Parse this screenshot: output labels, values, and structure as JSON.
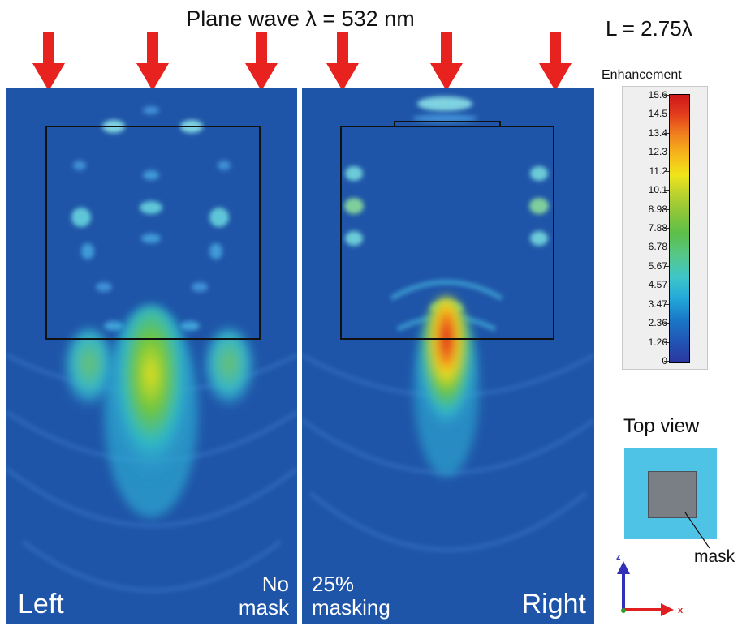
{
  "header": {
    "title": "Plane wave λ  = 532 nm",
    "length_label": "L = 2.75λ"
  },
  "panels": {
    "left": {
      "corner_label": "Left",
      "mask_line1": "No",
      "mask_line2": "mask"
    },
    "right": {
      "corner_label": "Right",
      "mask_line1": "25%",
      "mask_line2": "masking"
    }
  },
  "colorbar": {
    "title": "Enhancement",
    "ticks": [
      "15.6",
      "14.5",
      "13.4",
      "12.3",
      "11.2",
      "10.1",
      "8.98",
      "7.88",
      "6.78",
      "5.67",
      "4.57",
      "3.47",
      "2.36",
      "1.26",
      "0"
    ],
    "min": 0,
    "max": 15.6
  },
  "top_view": {
    "title": "Top view",
    "mask_label": "mask"
  },
  "axes": {
    "z_label": "z",
    "x_label": "x"
  },
  "colors": {
    "arrow": "#e8221f",
    "field_background": "#1f55a8",
    "outline": "#111111",
    "substrate": "#4fc3e6",
    "mask": "#7a7f86"
  },
  "icons": [
    "incident-arrow-icon",
    "axis-triad-icon"
  ]
}
